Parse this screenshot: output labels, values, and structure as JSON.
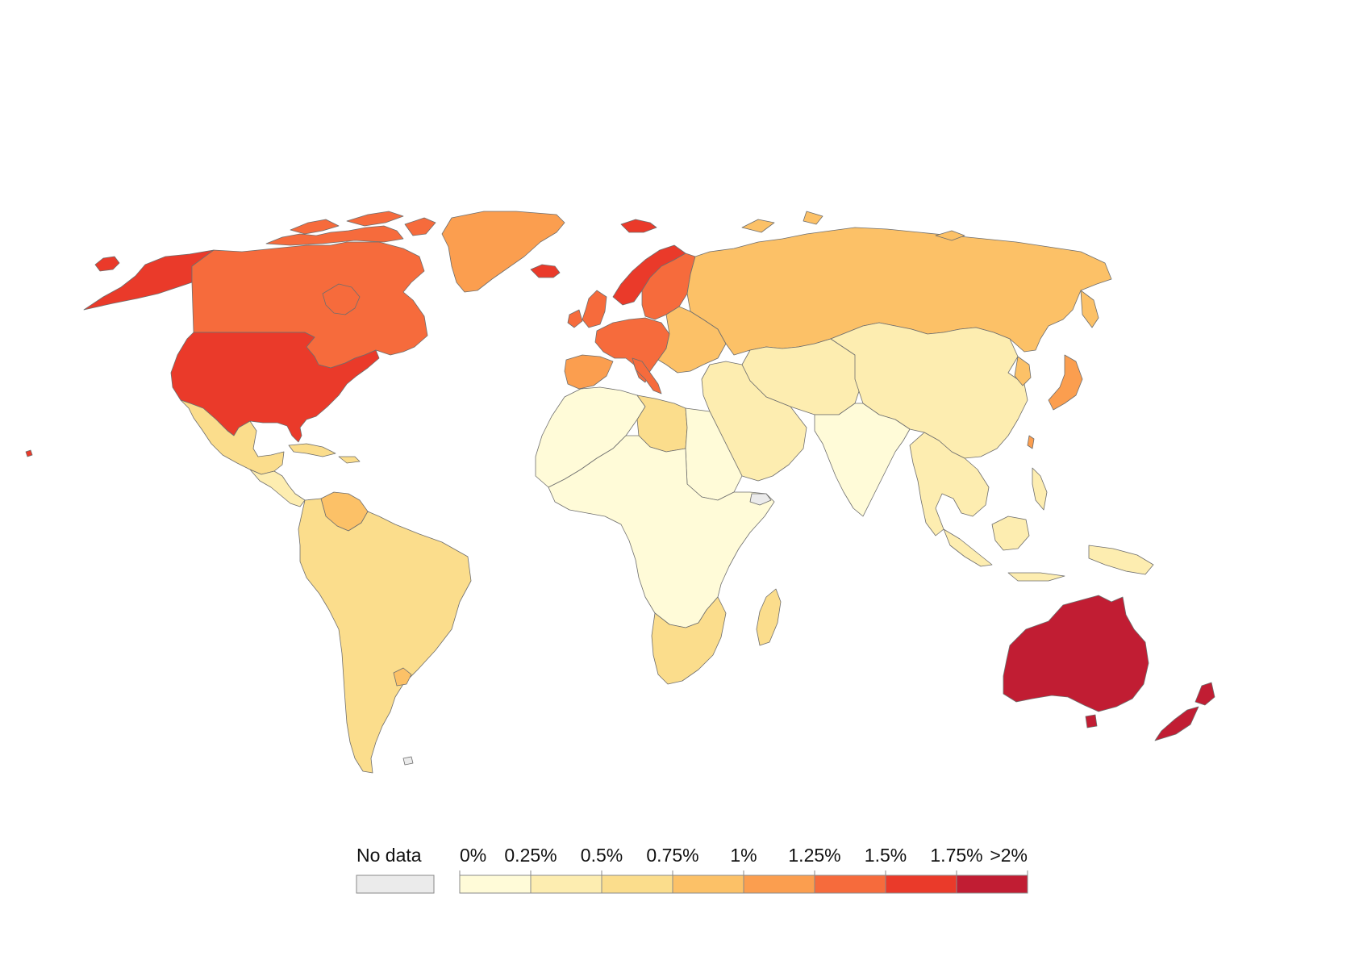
{
  "map": {
    "colors": {
      "no_data": "#ebebeb",
      "b0": "#fffbd8",
      "b1": "#fdedb0",
      "b2": "#fbdd8c",
      "b3": "#fcc167",
      "b4": "#fb9e4f",
      "b5": "#f66b3c",
      "b6": "#ea3a2a",
      "b7": "#c11d33",
      "border": "#6e6e6e"
    },
    "regions": [
      {
        "name": "canada",
        "bin": "b5"
      },
      {
        "name": "usa",
        "bin": "b6"
      },
      {
        "name": "alaska",
        "bin": "b6"
      },
      {
        "name": "hawaii",
        "bin": "b6"
      },
      {
        "name": "greenland",
        "bin": "b4"
      },
      {
        "name": "iceland",
        "bin": "b6"
      },
      {
        "name": "svalbard",
        "bin": "b6"
      },
      {
        "name": "mexico",
        "bin": "b2"
      },
      {
        "name": "central-america",
        "bin": "b1"
      },
      {
        "name": "caribbean",
        "bin": "b2"
      },
      {
        "name": "venezuela",
        "bin": "b3"
      },
      {
        "name": "south-america",
        "bin": "b2"
      },
      {
        "name": "uruguay",
        "bin": "b3"
      },
      {
        "name": "norway",
        "bin": "b6"
      },
      {
        "name": "sweden-finland",
        "bin": "b5"
      },
      {
        "name": "uk-ireland",
        "bin": "b5"
      },
      {
        "name": "western-europe",
        "bin": "b5"
      },
      {
        "name": "iberia",
        "bin": "b4"
      },
      {
        "name": "eastern-europe",
        "bin": "b3"
      },
      {
        "name": "russia",
        "bin": "b3"
      },
      {
        "name": "central-asia",
        "bin": "b1"
      },
      {
        "name": "china-mongolia",
        "bin": "b1"
      },
      {
        "name": "japan",
        "bin": "b4"
      },
      {
        "name": "korea",
        "bin": "b3"
      },
      {
        "name": "india",
        "bin": "b0"
      },
      {
        "name": "middle-east",
        "bin": "b1"
      },
      {
        "name": "southeast-asia",
        "bin": "b1"
      },
      {
        "name": "indonesia",
        "bin": "b1"
      },
      {
        "name": "north-africa",
        "bin": "b0"
      },
      {
        "name": "libya",
        "bin": "b2"
      },
      {
        "name": "sub-saharan-africa",
        "bin": "b0"
      },
      {
        "name": "southern-africa",
        "bin": "b2"
      },
      {
        "name": "madagascar",
        "bin": "b2"
      },
      {
        "name": "australia",
        "bin": "b7"
      },
      {
        "name": "new-zealand",
        "bin": "b7"
      },
      {
        "name": "somaliland",
        "bin": "no_data"
      },
      {
        "name": "falklands",
        "bin": "no_data"
      }
    ]
  },
  "legend": {
    "no_data_label": "No data",
    "tick_labels": [
      "0%",
      "0.25%",
      "0.5%",
      "0.75%",
      "1%",
      "1.25%",
      "1.5%",
      "1.75%",
      ">2%"
    ],
    "bins": [
      "b0",
      "b1",
      "b2",
      "b3",
      "b4",
      "b5",
      "b6",
      "b7"
    ]
  }
}
